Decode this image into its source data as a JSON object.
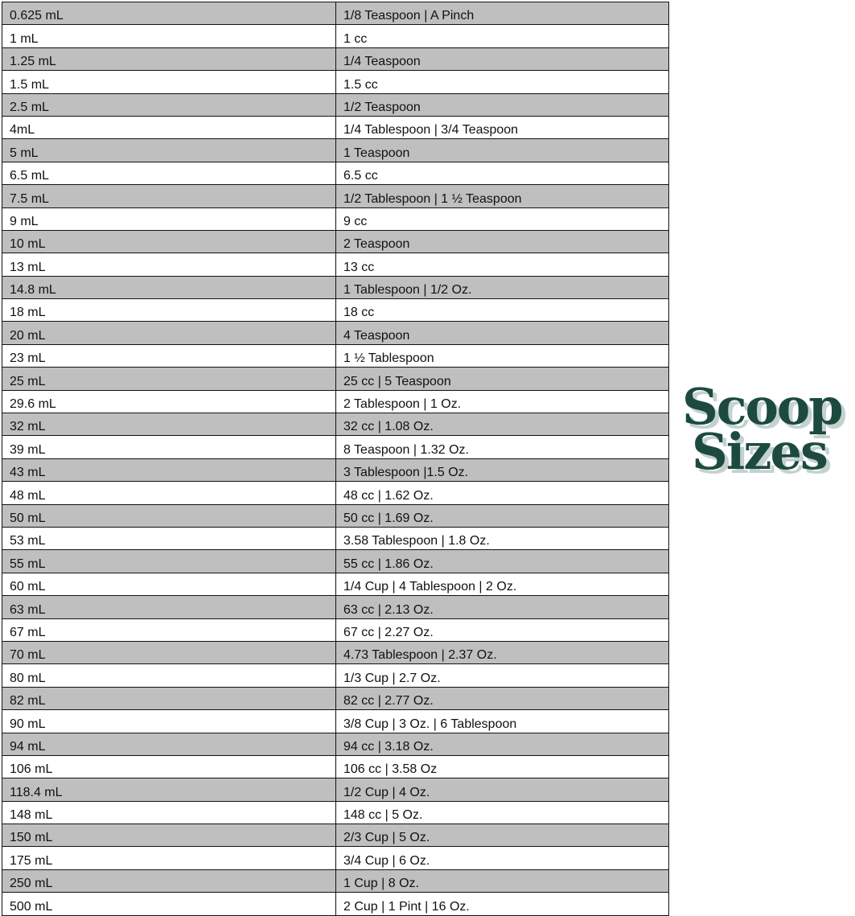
{
  "logo": {
    "line1": "Scoop",
    "line2": "Sizes",
    "color": "#1c4a3f",
    "shadow_color": "#c3d2cf"
  },
  "table": {
    "stripe_color": "#bfbfbf",
    "rows": [
      [
        "0.625 mL",
        "1/8 Teaspoon | A Pinch"
      ],
      [
        "1 mL",
        "1 cc"
      ],
      [
        "1.25 mL",
        "1/4 Teaspoon"
      ],
      [
        "1.5 mL",
        "1.5 cc"
      ],
      [
        "2.5 mL",
        "1/2 Teaspoon"
      ],
      [
        "4mL",
        "1/4 Tablespoon | 3/4 Teaspoon"
      ],
      [
        "5 mL",
        "1 Teaspoon"
      ],
      [
        "6.5 mL",
        "6.5 cc"
      ],
      [
        "7.5 mL",
        "1/2 Tablespoon | 1 ½ Teaspoon"
      ],
      [
        "9 mL",
        "9 cc"
      ],
      [
        "10 mL",
        "2 Teaspoon"
      ],
      [
        "13 mL",
        "13 cc"
      ],
      [
        "14.8 mL",
        "1 Tablespoon | 1/2 Oz."
      ],
      [
        "18 mL",
        "18 cc"
      ],
      [
        "20 mL",
        "4 Teaspoon"
      ],
      [
        "23 mL",
        "1 ½ Tablespoon"
      ],
      [
        "25 mL",
        "25 cc | 5 Teaspoon"
      ],
      [
        "29.6 mL",
        "2 Tablespoon | 1 Oz."
      ],
      [
        "32 mL",
        "32 cc | 1.08 Oz."
      ],
      [
        "39 mL",
        "8 Teaspoon | 1.32 Oz."
      ],
      [
        "43 mL",
        "3 Tablespoon |1.5 Oz."
      ],
      [
        "48 mL",
        "48 cc | 1.62 Oz."
      ],
      [
        "50 mL",
        "50 cc | 1.69 Oz."
      ],
      [
        "53 mL",
        "3.58 Tablespoon | 1.8 Oz."
      ],
      [
        "55 mL",
        "55 cc | 1.86 Oz."
      ],
      [
        "60 mL",
        "1/4 Cup | 4 Tablespoon | 2 Oz."
      ],
      [
        "63 mL",
        "63 cc | 2.13 Oz."
      ],
      [
        "67 mL",
        "67 cc | 2.27 Oz."
      ],
      [
        "70 mL",
        "4.73 Tablespoon | 2.37 Oz."
      ],
      [
        "80 mL",
        "1/3 Cup | 2.7 Oz."
      ],
      [
        "82 mL",
        "82 cc | 2.77 Oz."
      ],
      [
        "90 mL",
        "3/8 Cup | 3 Oz. | 6 Tablespoon"
      ],
      [
        "94 mL",
        "94 cc | 3.18 Oz."
      ],
      [
        "106 mL",
        "106 cc | 3.58 Oz"
      ],
      [
        "118.4 mL",
        "1/2 Cup | 4 Oz."
      ],
      [
        "148 mL",
        "148 cc | 5 Oz."
      ],
      [
        "150 mL",
        "2/3 Cup | 5 Oz."
      ],
      [
        "175 mL",
        "3/4 Cup | 6 Oz."
      ],
      [
        "250 mL",
        "1 Cup | 8 Oz."
      ],
      [
        "500 mL",
        "2 Cup | 1 Pint | 16 Oz."
      ]
    ]
  }
}
